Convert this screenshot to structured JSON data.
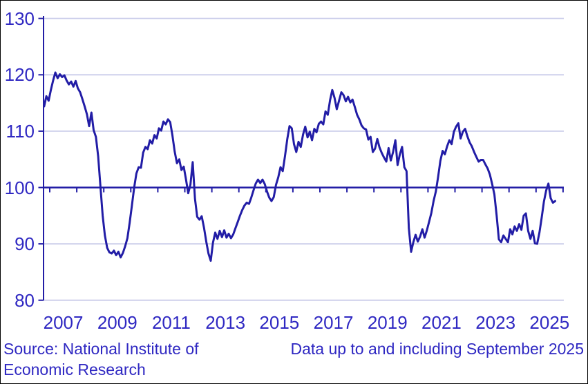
{
  "chart_data": {
    "type": "line",
    "title": "",
    "frequency": "monthly",
    "start_month": "2006-10",
    "end_month": "2025-09",
    "ylim": [
      80,
      130
    ],
    "y_ticks": [
      130,
      120,
      110,
      100,
      90,
      80
    ],
    "baseline_value": 100,
    "x_year_labels": [
      2007,
      2009,
      2011,
      2013,
      2015,
      2017,
      2019,
      2021,
      2023,
      2025
    ],
    "grid": "horizontal-light, dark baseline at 100, x ticks drawn on the 100 line",
    "legend_position": "none",
    "line_color": "#221da6",
    "label_color": "#2f28c2",
    "grid_color": "#c9cce9",
    "values": [
      114.4,
      116.2,
      115.4,
      117.3,
      119.0,
      120.4,
      119.4,
      120.1,
      119.6,
      119.9,
      119.0,
      118.3,
      118.8,
      117.9,
      118.9,
      117.6,
      116.9,
      115.7,
      114.4,
      113.0,
      110.9,
      113.3,
      110.2,
      109.0,
      105.5,
      100.3,
      95.0,
      91.5,
      89.3,
      88.5,
      88.3,
      88.8,
      88.0,
      88.6,
      87.6,
      88.4,
      89.6,
      91.0,
      93.8,
      96.8,
      100.0,
      102.5,
      103.6,
      103.5,
      106.2,
      107.2,
      106.8,
      108.4,
      107.8,
      109.3,
      108.7,
      110.5,
      110.1,
      111.7,
      111.2,
      112.1,
      111.6,
      109.2,
      106.4,
      104.3,
      105.0,
      103.1,
      103.7,
      101.5,
      99.0,
      100.5,
      104.5,
      98.0,
      94.8,
      94.3,
      94.9,
      92.9,
      90.4,
      88.3,
      87.0,
      90.2,
      92.0,
      90.9,
      92.3,
      91.2,
      92.4,
      91.1,
      91.8,
      91.0,
      91.7,
      92.8,
      93.9,
      95.0,
      96.0,
      96.8,
      97.3,
      97.1,
      98.2,
      99.5,
      100.7,
      101.4,
      100.8,
      101.4,
      100.6,
      99.3,
      98.2,
      97.6,
      98.3,
      100.5,
      101.8,
      103.6,
      102.9,
      105.6,
      108.6,
      110.9,
      110.5,
      107.7,
      106.3,
      108.1,
      107.2,
      109.4,
      110.8,
      108.9,
      109.9,
      108.4,
      110.4,
      109.8,
      111.3,
      111.7,
      111.2,
      113.5,
      112.9,
      115.5,
      117.3,
      115.9,
      113.9,
      115.4,
      116.9,
      116.4,
      115.3,
      116.1,
      115.1,
      115.6,
      114.3,
      112.9,
      112.1,
      111.0,
      110.5,
      110.3,
      108.5,
      109.0,
      106.3,
      106.9,
      108.6,
      107.1,
      106.1,
      105.3,
      104.6,
      107.0,
      104.8,
      106.3,
      108.4,
      104.0,
      105.9,
      107.2,
      103.6,
      102.9,
      92.8,
      88.6,
      90.3,
      91.6,
      90.4,
      91.3,
      92.6,
      91.1,
      92.4,
      93.9,
      95.5,
      97.6,
      99.3,
      101.9,
      104.7,
      106.5,
      105.9,
      107.3,
      108.4,
      107.7,
      109.9,
      110.8,
      111.4,
      108.7,
      109.9,
      110.4,
      109.1,
      108.0,
      107.3,
      106.3,
      105.4,
      104.6,
      104.9,
      104.9,
      104.1,
      103.4,
      102.3,
      100.6,
      98.8,
      95.0,
      90.8,
      90.3,
      91.5,
      90.9,
      90.3,
      92.6,
      91.7,
      93.1,
      92.3,
      93.5,
      92.5,
      95.0,
      95.4,
      92.3,
      90.9,
      92.3,
      90.1,
      90.0,
      92.0,
      94.6,
      97.5,
      99.5,
      100.7,
      98.1,
      97.3,
      97.6
    ]
  },
  "footer": {
    "source_line1": "Source: National Institute of",
    "source_line2": "Economic Research",
    "note": "Data up to and including September 2025"
  }
}
